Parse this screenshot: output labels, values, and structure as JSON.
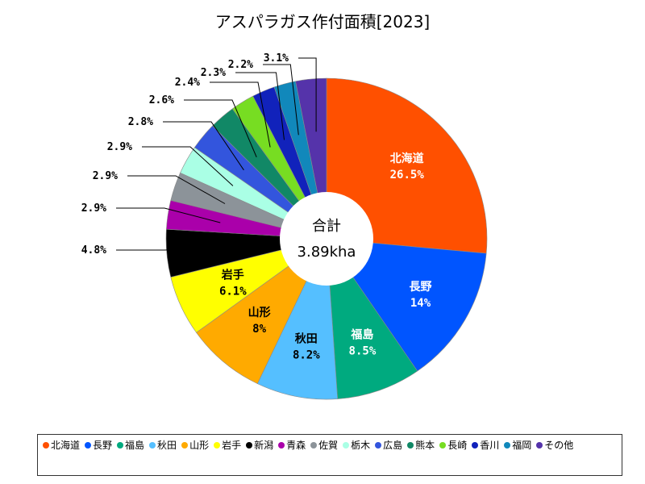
{
  "chart_data": {
    "type": "pie",
    "title": "アスパラガス作付面積[2023]",
    "center_label": "合計",
    "center_value": "3.89kha",
    "slices": [
      {
        "name": "北海道",
        "value": 26.5,
        "label": "26.5%",
        "color": "#ff5000"
      },
      {
        "name": "長野",
        "value": 14,
        "label": "14%",
        "color": "#0055ff"
      },
      {
        "name": "福島",
        "value": 8.5,
        "label": "8.5%",
        "color": "#00aa7f"
      },
      {
        "name": "秋田",
        "value": 8.2,
        "label": "8.2%",
        "color": "#55bfff"
      },
      {
        "name": "山形",
        "value": 8,
        "label": "8%",
        "color": "#ffaa00"
      },
      {
        "name": "岩手",
        "value": 6.1,
        "label": "6.1%",
        "color": "#ffff00"
      },
      {
        "name": "新潟",
        "value": 4.8,
        "label": "4.8%",
        "color": "#000000"
      },
      {
        "name": "青森",
        "value": 2.9,
        "label": "2.9%",
        "color": "#aa00aa"
      },
      {
        "name": "佐賀",
        "value": 2.9,
        "label": "2.9%",
        "color": "#8c9399"
      },
      {
        "name": "栃木",
        "value": 2.9,
        "label": "2.9%",
        "color": "#aaffe5"
      },
      {
        "name": "広島",
        "value": 2.8,
        "label": "2.8%",
        "color": "#3355dd"
      },
      {
        "name": "熊本",
        "value": 2.6,
        "label": "2.6%",
        "color": "#118866"
      },
      {
        "name": "長崎",
        "value": 2.4,
        "label": "2.4%",
        "color": "#77dd22"
      },
      {
        "name": "香川",
        "value": 2.3,
        "label": "2.3%",
        "color": "#1122bb"
      },
      {
        "name": "福岡",
        "value": 2.2,
        "label": "2.2%",
        "color": "#1188bb"
      },
      {
        "name": "その他",
        "value": 3.1,
        "label": "3.1%",
        "color": "#5533aa"
      }
    ],
    "legend_position": "bottom"
  }
}
